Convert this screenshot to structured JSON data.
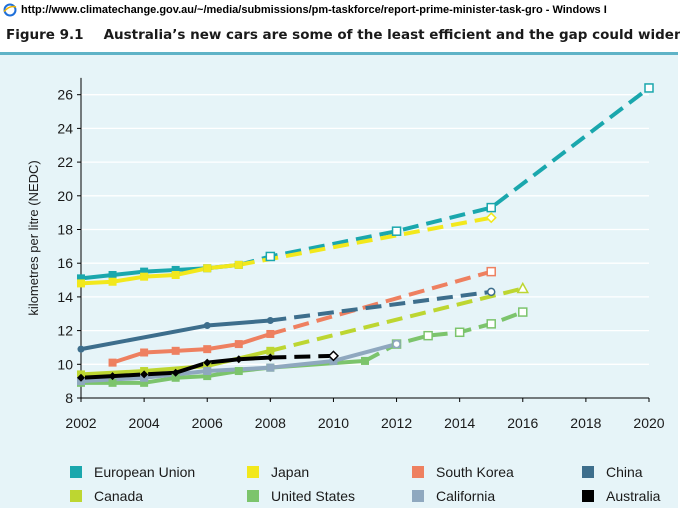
{
  "window": {
    "title": "http://www.climatechange.gov.au/~/media/submissions/pm-taskforce/report-prime-minister-task-gro - Windows I",
    "icon": "ie-icon"
  },
  "figure": {
    "number": "Figure 9.1",
    "title": "Australia’s new cars are some of the least efficient and the gap could widen"
  },
  "chart_data": {
    "type": "line",
    "ylabel": "kilometres per litre (NEDC)",
    "xlabel": "",
    "xlim": [
      2002,
      2020
    ],
    "ylim": [
      8,
      27
    ],
    "x_ticks": [
      2002,
      2004,
      2006,
      2008,
      2010,
      2012,
      2014,
      2016,
      2018,
      2020
    ],
    "y_ticks": [
      8,
      10,
      12,
      14,
      16,
      18,
      20,
      22,
      24,
      26
    ],
    "grid": true,
    "legend_position": "bottom",
    "series": [
      {
        "name": "European Union",
        "color": "#1aa7ad",
        "actual": [
          [
            2002,
            15.1
          ],
          [
            2003,
            15.3
          ],
          [
            2004,
            15.5
          ],
          [
            2005,
            15.6
          ],
          [
            2006,
            15.7
          ],
          [
            2007,
            15.9
          ]
        ],
        "projected": [
          [
            2007,
            15.9
          ],
          [
            2008,
            16.4
          ],
          [
            2012,
            17.9
          ],
          [
            2015,
            19.3
          ],
          [
            2020,
            26.4
          ]
        ]
      },
      {
        "name": "Japan",
        "color": "#f2e81c",
        "actual": [
          [
            2002,
            14.8
          ],
          [
            2003,
            14.9
          ],
          [
            2004,
            15.2
          ],
          [
            2005,
            15.3
          ],
          [
            2006,
            15.7
          ],
          [
            2007,
            15.9
          ]
        ],
        "projected": [
          [
            2007,
            15.9
          ],
          [
            2015,
            18.7
          ]
        ]
      },
      {
        "name": "South Korea",
        "color": "#ee8060",
        "actual": [
          [
            2003,
            10.1
          ],
          [
            2004,
            10.7
          ],
          [
            2005,
            10.8
          ],
          [
            2006,
            10.9
          ],
          [
            2007,
            11.2
          ],
          [
            2008,
            11.8
          ]
        ],
        "projected": [
          [
            2008,
            11.8
          ],
          [
            2015,
            15.5
          ]
        ]
      },
      {
        "name": "China",
        "color": "#3d6e8c",
        "actual": [
          [
            2002,
            10.9
          ],
          [
            2006,
            12.3
          ],
          [
            2008,
            12.6
          ]
        ],
        "projected": [
          [
            2008,
            12.6
          ],
          [
            2015,
            14.3
          ]
        ]
      },
      {
        "name": "Canada",
        "color": "#bdd631",
        "actual": [
          [
            2002,
            9.4
          ],
          [
            2004,
            9.6
          ],
          [
            2006,
            9.9
          ],
          [
            2008,
            10.8
          ]
        ],
        "projected": [
          [
            2008,
            10.8
          ],
          [
            2016,
            14.5
          ]
        ]
      },
      {
        "name": "United States",
        "color": "#7cc46c",
        "actual": [
          [
            2002,
            8.9
          ],
          [
            2003,
            8.9
          ],
          [
            2004,
            8.9
          ],
          [
            2005,
            9.2
          ],
          [
            2006,
            9.3
          ],
          [
            2007,
            9.6
          ],
          [
            2008,
            9.8
          ],
          [
            2011,
            10.2
          ]
        ],
        "projected": [
          [
            2011,
            10.2
          ],
          [
            2012,
            11.2
          ],
          [
            2013,
            11.7
          ],
          [
            2014,
            11.9
          ],
          [
            2015,
            12.4
          ],
          [
            2016,
            13.1
          ]
        ]
      },
      {
        "name": "California",
        "color": "#8fa8bf",
        "actual": [
          [
            2002,
            9.0
          ],
          [
            2004,
            9.2
          ],
          [
            2006,
            9.6
          ],
          [
            2008,
            9.8
          ],
          [
            2010,
            10.2
          ],
          [
            2012,
            11.2
          ]
        ],
        "projected": []
      },
      {
        "name": "Australia",
        "color": "#000000",
        "actual": [
          [
            2002,
            9.2
          ],
          [
            2003,
            9.3
          ],
          [
            2004,
            9.4
          ],
          [
            2005,
            9.5
          ],
          [
            2006,
            10.1
          ],
          [
            2007,
            10.3
          ],
          [
            2008,
            10.4
          ]
        ],
        "projected": [
          [
            2008,
            10.4
          ],
          [
            2010,
            10.5
          ]
        ]
      }
    ]
  }
}
